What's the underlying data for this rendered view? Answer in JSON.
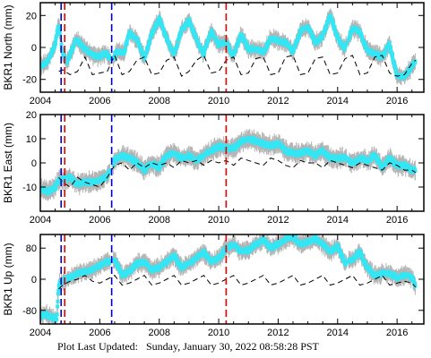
{
  "footer": {
    "label": "Plot Last Updated:",
    "timestamp": "Sunday, January 30, 2022 08:58:28 PST"
  },
  "colors": {
    "data_points": "#34e6f4",
    "error_bars": "#b4b4b4",
    "model": "#000000",
    "event_blue": "#0000c8",
    "event_red": "#e60000"
  },
  "chart_data": [
    {
      "type": "scatter",
      "title": "",
      "ylabel": "BKR1 North (mm)",
      "xlim": [
        2004.0,
        2016.9
      ],
      "ylim": [
        -28,
        28
      ],
      "xticks": [
        2004,
        2006,
        2008,
        2010,
        2012,
        2014,
        2016
      ],
      "yticks": [
        -20,
        0,
        20
      ],
      "series": [
        {
          "role": "observed",
          "x": [
            2004.0,
            2004.25,
            2004.5,
            2004.62,
            2004.75,
            2004.9,
            2005.2,
            2005.5,
            2005.8,
            2006.0,
            2006.2,
            2006.4,
            2006.6,
            2006.8,
            2007.0,
            2007.25,
            2007.5,
            2007.75,
            2008.0,
            2008.25,
            2008.5,
            2008.75,
            2009.0,
            2009.25,
            2009.5,
            2009.75,
            2010.0,
            2010.25,
            2010.5,
            2010.75,
            2011.0,
            2011.25,
            2011.5,
            2011.75,
            2012.0,
            2012.25,
            2012.5,
            2012.75,
            2013.0,
            2013.25,
            2013.5,
            2013.75,
            2014.0,
            2014.25,
            2014.5,
            2014.75,
            2015.0,
            2015.25,
            2015.5,
            2015.75,
            2016.0,
            2016.25,
            2016.5,
            2016.62
          ],
          "y": [
            -12,
            -9,
            2,
            15,
            -4,
            -9,
            5,
            -1,
            -5,
            -6,
            -3,
            -8,
            -2,
            -4,
            9,
            5,
            -7,
            8,
            18,
            5,
            -4,
            11,
            17,
            5,
            -4,
            10,
            2,
            3,
            -5,
            8,
            -1,
            -1,
            -3,
            6,
            4,
            3,
            -3,
            10,
            13,
            3,
            7,
            20,
            6,
            -1,
            12,
            10,
            -2,
            -4,
            -6,
            2,
            -18,
            -18,
            -12,
            -8
          ]
        },
        {
          "role": "model",
          "x": [
            2004.62,
            2004.75,
            2005.0,
            2005.25,
            2005.5,
            2005.75,
            2006.0,
            2006.25,
            2006.5,
            2006.75,
            2007.0,
            2007.25,
            2007.5,
            2007.75,
            2008.0,
            2008.25,
            2008.5,
            2008.75,
            2009.0,
            2009.25,
            2009.5,
            2009.75,
            2010.0,
            2010.25,
            2010.5,
            2010.75,
            2011.0,
            2011.25,
            2011.5,
            2011.75,
            2012.0,
            2012.25,
            2012.5,
            2012.75,
            2013.0,
            2013.25,
            2013.5,
            2013.75,
            2014.0,
            2014.25,
            2014.5,
            2014.75,
            2015.0,
            2015.25,
            2015.5,
            2015.75,
            2016.0,
            2016.25,
            2016.5,
            2016.62
          ],
          "y": [
            -15,
            -14,
            -17,
            -15,
            -6,
            -17,
            -16,
            -15,
            -5,
            -17,
            -15,
            -8,
            -6,
            -17,
            -16,
            -8,
            -6,
            -18,
            -15,
            -8,
            -5,
            -16,
            -15,
            -8,
            -6,
            -17,
            -16,
            -7,
            -6,
            -17,
            -16,
            -6,
            -5,
            -17,
            -16,
            -7,
            -6,
            -17,
            -16,
            -7,
            -5,
            -17,
            -16,
            -6,
            -5,
            -16,
            -18,
            -17,
            -10,
            -8
          ]
        }
      ],
      "events": [
        {
          "x": 2004.7,
          "color": "blue"
        },
        {
          "x": 2004.82,
          "color": "red"
        },
        {
          "x": 2006.4,
          "color": "blue"
        },
        {
          "x": 2010.25,
          "color": "red"
        }
      ]
    },
    {
      "type": "scatter",
      "title": "",
      "ylabel": "BKR1 East (mm)",
      "xlim": [
        2004.0,
        2016.9
      ],
      "ylim": [
        -20,
        20
      ],
      "xticks": [
        2004,
        2006,
        2008,
        2010,
        2012,
        2014,
        2016
      ],
      "yticks": [
        -10,
        0,
        10,
        20
      ],
      "series": [
        {
          "role": "observed",
          "x": [
            2004.0,
            2004.25,
            2004.5,
            2004.62,
            2004.75,
            2005.0,
            2005.25,
            2005.5,
            2005.75,
            2006.0,
            2006.25,
            2006.5,
            2006.75,
            2007.0,
            2007.25,
            2007.5,
            2007.75,
            2008.0,
            2008.25,
            2008.5,
            2008.75,
            2009.0,
            2009.25,
            2009.5,
            2009.75,
            2010.0,
            2010.25,
            2010.5,
            2010.75,
            2011.0,
            2011.25,
            2011.5,
            2011.75,
            2012.0,
            2012.25,
            2012.5,
            2012.75,
            2013.0,
            2013.25,
            2013.5,
            2013.75,
            2014.0,
            2014.25,
            2014.5,
            2014.75,
            2015.0,
            2015.25,
            2015.5,
            2015.75,
            2016.0,
            2016.25,
            2016.5,
            2016.62
          ],
          "y": [
            -10,
            -12,
            -10,
            -7,
            -7,
            -6,
            -9,
            -8,
            -8,
            -7,
            -6,
            1,
            3,
            2,
            0,
            -3,
            0,
            -2,
            3,
            4,
            2,
            3,
            1,
            3,
            5,
            7,
            6,
            6,
            9,
            10,
            9,
            8,
            7,
            8,
            5,
            4,
            4,
            5,
            3,
            5,
            2,
            2,
            2,
            0,
            2,
            1,
            3,
            -2,
            2,
            -1,
            -1,
            -3,
            -3
          ]
        },
        {
          "role": "model",
          "x": [
            2004.62,
            2004.75,
            2005.0,
            2005.25,
            2005.5,
            2005.75,
            2006.0,
            2006.25,
            2006.5,
            2006.75,
            2007.0,
            2007.25,
            2007.5,
            2007.75,
            2008.0,
            2008.25,
            2008.5,
            2008.75,
            2009.0,
            2009.25,
            2009.5,
            2009.75,
            2010.0,
            2010.25,
            2010.5,
            2010.75,
            2011.0,
            2011.25,
            2011.5,
            2011.75,
            2012.0,
            2012.25,
            2012.5,
            2012.75,
            2013.0,
            2013.25,
            2013.5,
            2013.75,
            2014.0,
            2014.25,
            2014.5,
            2014.75,
            2015.0,
            2015.25,
            2015.5,
            2015.75,
            2016.0,
            2016.25,
            2016.5,
            2016.62
          ],
          "y": [
            -6,
            -8,
            -10,
            -6,
            -8,
            -9,
            -10,
            -6,
            -1,
            0,
            -3,
            0,
            -2,
            0,
            -1,
            0,
            -2,
            1,
            0,
            1,
            -1,
            1,
            0,
            1,
            -1,
            2,
            1,
            0,
            -1,
            2,
            1,
            -1,
            -2,
            1,
            0,
            0,
            -2,
            1,
            0,
            -1,
            -2,
            0,
            -1,
            -2,
            -3,
            0,
            -1,
            -3,
            -3,
            -4
          ]
        }
      ],
      "events": [
        {
          "x": 2004.7,
          "color": "blue"
        },
        {
          "x": 2004.82,
          "color": "red"
        },
        {
          "x": 2006.4,
          "color": "blue"
        },
        {
          "x": 2010.25,
          "color": "red"
        }
      ]
    },
    {
      "type": "scatter",
      "title": "",
      "ylabel": "BKR1 Up (mm)",
      "xlim": [
        2004.0,
        2016.9
      ],
      "ylim": [
        -115,
        115
      ],
      "xticks": [
        2004,
        2006,
        2008,
        2010,
        2012,
        2014,
        2016
      ],
      "yticks": [
        -80,
        0,
        80
      ],
      "series": [
        {
          "role": "observed",
          "x": [
            2004.0,
            2004.15,
            2004.3,
            2004.45,
            2004.55,
            2004.62,
            2004.75,
            2005.0,
            2005.25,
            2005.5,
            2005.75,
            2006.0,
            2006.25,
            2006.5,
            2006.75,
            2007.0,
            2007.25,
            2007.5,
            2007.75,
            2008.0,
            2008.25,
            2008.5,
            2008.75,
            2009.0,
            2009.25,
            2009.5,
            2009.75,
            2010.0,
            2010.25,
            2010.5,
            2010.75,
            2011.0,
            2011.25,
            2011.5,
            2011.75,
            2012.0,
            2012.25,
            2012.5,
            2012.75,
            2013.0,
            2013.25,
            2013.5,
            2013.75,
            2014.0,
            2014.25,
            2014.5,
            2014.75,
            2015.0,
            2015.25,
            2015.5,
            2015.75,
            2016.0,
            2016.25,
            2016.5,
            2016.62
          ],
          "y": [
            -95,
            -90,
            -95,
            -100,
            -105,
            -15,
            -5,
            5,
            15,
            20,
            25,
            35,
            45,
            50,
            10,
            20,
            40,
            45,
            25,
            30,
            45,
            60,
            30,
            40,
            55,
            70,
            45,
            55,
            80,
            90,
            70,
            75,
            90,
            100,
            80,
            90,
            105,
            110,
            90,
            95,
            105,
            90,
            70,
            85,
            40,
            50,
            70,
            30,
            10,
            15,
            15,
            5,
            10,
            5,
            -15
          ]
        },
        {
          "role": "model",
          "x": [
            2004.62,
            2004.75,
            2005.0,
            2005.25,
            2005.5,
            2005.75,
            2006.0,
            2006.25,
            2006.5,
            2006.75,
            2007.0,
            2007.25,
            2007.5,
            2007.75,
            2008.0,
            2008.25,
            2008.5,
            2008.75,
            2009.0,
            2009.25,
            2009.5,
            2009.75,
            2010.0,
            2010.25,
            2010.5,
            2010.75,
            2011.0,
            2011.25,
            2011.5,
            2011.75,
            2012.0,
            2012.25,
            2012.5,
            2012.75,
            2013.0,
            2013.25,
            2013.5,
            2013.75,
            2014.0,
            2014.25,
            2014.5,
            2014.75,
            2015.0,
            2015.25,
            2015.5,
            2015.75,
            2016.0,
            2016.25,
            2016.5,
            2016.62
          ],
          "y": [
            -25,
            -15,
            -5,
            0,
            10,
            -5,
            -10,
            0,
            10,
            -15,
            -10,
            0,
            10,
            -15,
            -10,
            0,
            10,
            -15,
            -10,
            0,
            10,
            -15,
            -10,
            0,
            10,
            -15,
            -10,
            0,
            10,
            -15,
            -10,
            0,
            10,
            -15,
            -10,
            0,
            10,
            -15,
            -10,
            0,
            10,
            -15,
            -10,
            0,
            10,
            -15,
            -10,
            -5,
            -10,
            -20
          ]
        }
      ],
      "events": [
        {
          "x": 2004.7,
          "color": "blue"
        },
        {
          "x": 2004.82,
          "color": "red"
        },
        {
          "x": 2006.4,
          "color": "blue"
        },
        {
          "x": 2010.25,
          "color": "red"
        }
      ]
    }
  ]
}
